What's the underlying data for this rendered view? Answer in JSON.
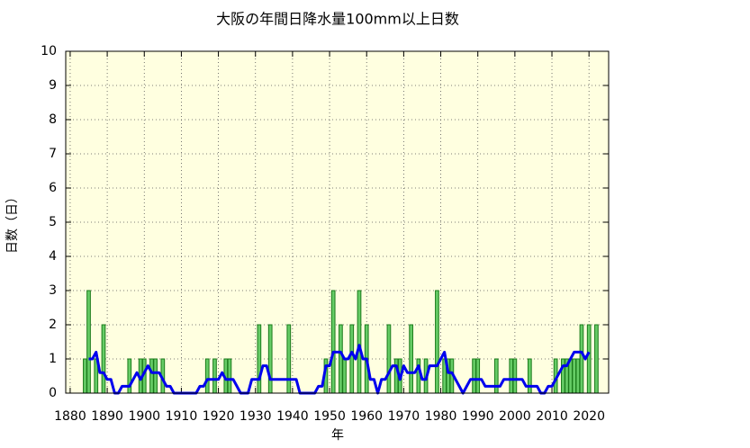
{
  "chart_data": {
    "type": "bar",
    "title": "大阪の年間日降水量100mm以上日数",
    "x_label": "年",
    "y_label": "日数（日）",
    "xlim": [
      1878.8,
      2025.3
    ],
    "ylim": [
      0,
      10
    ],
    "xticks": [
      1880,
      1890,
      1900,
      1910,
      1920,
      1930,
      1940,
      1950,
      1960,
      1970,
      1980,
      1990,
      2000,
      2010,
      2020
    ],
    "yticks": [
      0,
      1,
      2,
      3,
      4,
      5,
      6,
      7,
      8,
      9,
      10
    ],
    "grid": true,
    "background": "#ffffe0",
    "series": [
      {
        "type": "bar",
        "color": "#66cc66",
        "edge_color": "#1a7a1a",
        "x": [
          1883,
          1884,
          1885,
          1886,
          1887,
          1888,
          1889,
          1890,
          1891,
          1892,
          1893,
          1894,
          1895,
          1896,
          1897,
          1898,
          1899,
          1900,
          1901,
          1902,
          1903,
          1904,
          1905,
          1906,
          1907,
          1908,
          1909,
          1910,
          1911,
          1912,
          1913,
          1914,
          1915,
          1916,
          1917,
          1918,
          1919,
          1920,
          1921,
          1922,
          1923,
          1924,
          1925,
          1926,
          1927,
          1928,
          1929,
          1930,
          1931,
          1932,
          1933,
          1934,
          1935,
          1936,
          1937,
          1938,
          1939,
          1940,
          1941,
          1942,
          1943,
          1944,
          1945,
          1946,
          1947,
          1948,
          1949,
          1950,
          1951,
          1952,
          1953,
          1954,
          1955,
          1956,
          1957,
          1958,
          1959,
          1960,
          1961,
          1962,
          1963,
          1964,
          1965,
          1966,
          1967,
          1968,
          1969,
          1970,
          1971,
          1972,
          1973,
          1974,
          1975,
          1976,
          1977,
          1978,
          1979,
          1980,
          1981,
          1982,
          1983,
          1984,
          1985,
          1986,
          1987,
          1988,
          1989,
          1990,
          1991,
          1992,
          1993,
          1994,
          1995,
          1996,
          1997,
          1998,
          1999,
          2000,
          2001,
          2002,
          2003,
          2004,
          2005,
          2006,
          2007,
          2008,
          2009,
          2010,
          2011,
          2012,
          2013,
          2014,
          2015,
          2016,
          2017,
          2018,
          2019,
          2020,
          2021,
          2022
        ],
        "values": [
          0,
          1,
          3,
          0,
          1,
          0,
          2,
          0,
          0,
          0,
          0,
          0,
          0,
          1,
          0,
          0,
          1,
          1,
          0,
          1,
          1,
          0,
          1,
          0,
          0,
          0,
          0,
          0,
          0,
          0,
          0,
          0,
          0,
          0,
          1,
          0,
          1,
          0,
          0,
          1,
          1,
          0,
          0,
          0,
          0,
          0,
          0,
          0,
          2,
          0,
          0,
          2,
          0,
          0,
          0,
          0,
          2,
          0,
          0,
          0,
          0,
          0,
          0,
          0,
          0,
          0,
          1,
          0,
          3,
          0,
          2,
          1,
          0,
          2,
          0,
          3,
          0,
          2,
          0,
          0,
          0,
          0,
          0,
          2,
          0,
          1,
          1,
          0,
          0,
          2,
          0,
          1,
          0,
          1,
          0,
          0,
          3,
          0,
          1,
          1,
          1,
          0,
          0,
          0,
          0,
          0,
          1,
          1,
          0,
          0,
          0,
          0,
          1,
          0,
          0,
          0,
          1,
          1,
          0,
          0,
          0,
          1,
          0,
          0,
          0,
          0,
          0,
          0,
          1,
          0,
          1,
          1,
          1,
          1,
          1,
          2,
          0,
          2,
          0,
          2
        ]
      },
      {
        "type": "line",
        "color": "#0000ee",
        "x": [
          1885,
          1886,
          1887,
          1888,
          1889,
          1890,
          1891,
          1892,
          1893,
          1894,
          1895,
          1896,
          1897,
          1898,
          1899,
          1900,
          1901,
          1902,
          1903,
          1904,
          1905,
          1906,
          1907,
          1908,
          1909,
          1910,
          1911,
          1912,
          1913,
          1914,
          1915,
          1916,
          1917,
          1918,
          1919,
          1920,
          1921,
          1922,
          1923,
          1924,
          1925,
          1926,
          1927,
          1928,
          1929,
          1930,
          1931,
          1932,
          1933,
          1934,
          1935,
          1936,
          1937,
          1938,
          1939,
          1940,
          1941,
          1942,
          1943,
          1944,
          1945,
          1946,
          1947,
          1948,
          1949,
          1950,
          1951,
          1952,
          1953,
          1954,
          1955,
          1956,
          1957,
          1958,
          1959,
          1960,
          1961,
          1962,
          1963,
          1964,
          1965,
          1966,
          1967,
          1968,
          1969,
          1970,
          1971,
          1972,
          1973,
          1974,
          1975,
          1976,
          1977,
          1978,
          1979,
          1980,
          1981,
          1982,
          1983,
          1984,
          1985,
          1986,
          1987,
          1988,
          1989,
          1990,
          1991,
          1992,
          1993,
          1994,
          1995,
          1996,
          1997,
          1998,
          1999,
          2000,
          2001,
          2002,
          2003,
          2004,
          2005,
          2006,
          2007,
          2008,
          2009,
          2010,
          2011,
          2012,
          2013,
          2014,
          2015,
          2016,
          2017,
          2018,
          2019,
          2020
        ],
        "values": [
          1,
          1,
          1.2,
          0.6,
          0.6,
          0.4,
          0.4,
          0,
          0,
          0.2,
          0.2,
          0.2,
          0.4,
          0.6,
          0.4,
          0.6,
          0.8,
          0.6,
          0.6,
          0.6,
          0.4,
          0.2,
          0.2,
          0,
          0,
          0,
          0,
          0,
          0,
          0,
          0.2,
          0.2,
          0.4,
          0.4,
          0.4,
          0.4,
          0.6,
          0.4,
          0.4,
          0.4,
          0.2,
          0,
          0,
          0,
          0.4,
          0.4,
          0.4,
          0.8,
          0.8,
          0.4,
          0.4,
          0.4,
          0.4,
          0.4,
          0.4,
          0.4,
          0.4,
          0,
          0,
          0,
          0,
          0,
          0.2,
          0.2,
          0.8,
          0.8,
          1.2,
          1.2,
          1.2,
          1,
          1,
          1.2,
          1,
          1.4,
          1,
          1,
          0.4,
          0.4,
          0,
          0.4,
          0.4,
          0.6,
          0.8,
          0.8,
          0.4,
          0.8,
          0.6,
          0.6,
          0.6,
          0.8,
          0.4,
          0.4,
          0.8,
          0.8,
          0.8,
          1,
          1.2,
          0.6,
          0.6,
          0.4,
          0.2,
          0,
          0.2,
          0.4,
          0.4,
          0.4,
          0.4,
          0.2,
          0.2,
          0.2,
          0.2,
          0.2,
          0.4,
          0.4,
          0.4,
          0.4,
          0.4,
          0.4,
          0.2,
          0.2,
          0.2,
          0.2,
          0,
          0,
          0.2,
          0.2,
          0.4,
          0.6,
          0.8,
          0.8,
          1,
          1.2,
          1.2,
          1.2,
          1,
          1.2
        ]
      }
    ]
  }
}
